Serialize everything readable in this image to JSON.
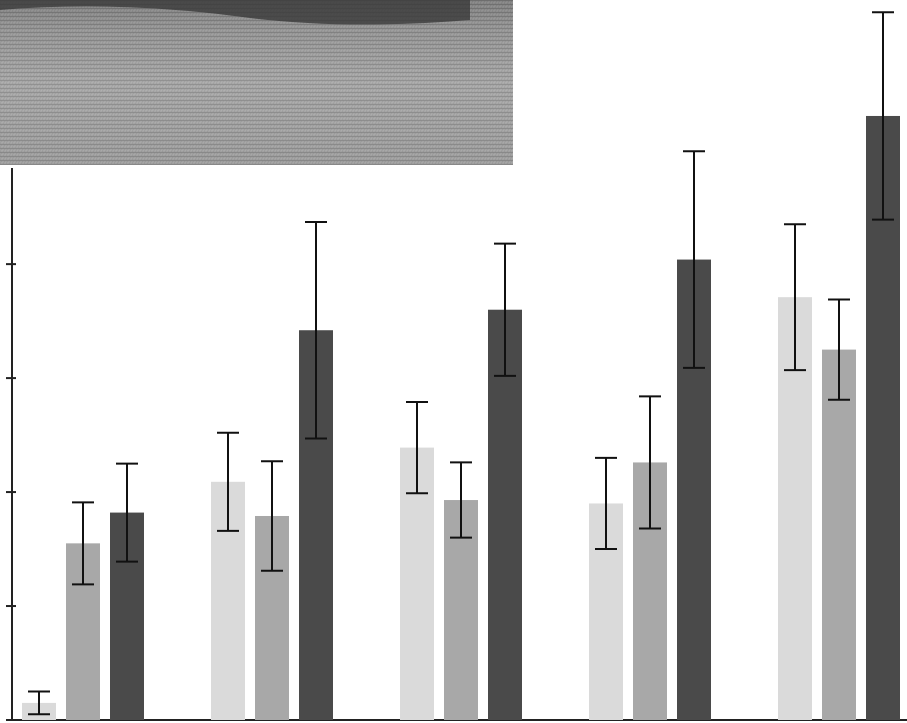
{
  "chart_data": {
    "type": "bar",
    "categories": [
      null,
      null,
      null,
      null,
      null
    ],
    "series": [
      {
        "color": "#dadada",
        "values": [
          0.15,
          2.09,
          2.39,
          1.9,
          3.71
        ],
        "errors": [
          0.1,
          0.43,
          0.4,
          0.4,
          0.64
        ]
      },
      {
        "color": "#a8a8a8",
        "values": [
          1.55,
          1.79,
          1.93,
          2.26,
          3.25
        ],
        "errors": [
          0.36,
          0.48,
          0.33,
          0.58,
          0.44
        ]
      },
      {
        "color": "#4a4a4a",
        "values": [
          1.82,
          3.42,
          3.6,
          4.04,
          5.3
        ],
        "errors": [
          0.43,
          0.95,
          0.58,
          0.95,
          0.91
        ]
      }
    ],
    "ylim": [
      0,
      6.3
    ],
    "yticks": [
      0,
      1,
      2,
      3,
      4
    ]
  }
}
